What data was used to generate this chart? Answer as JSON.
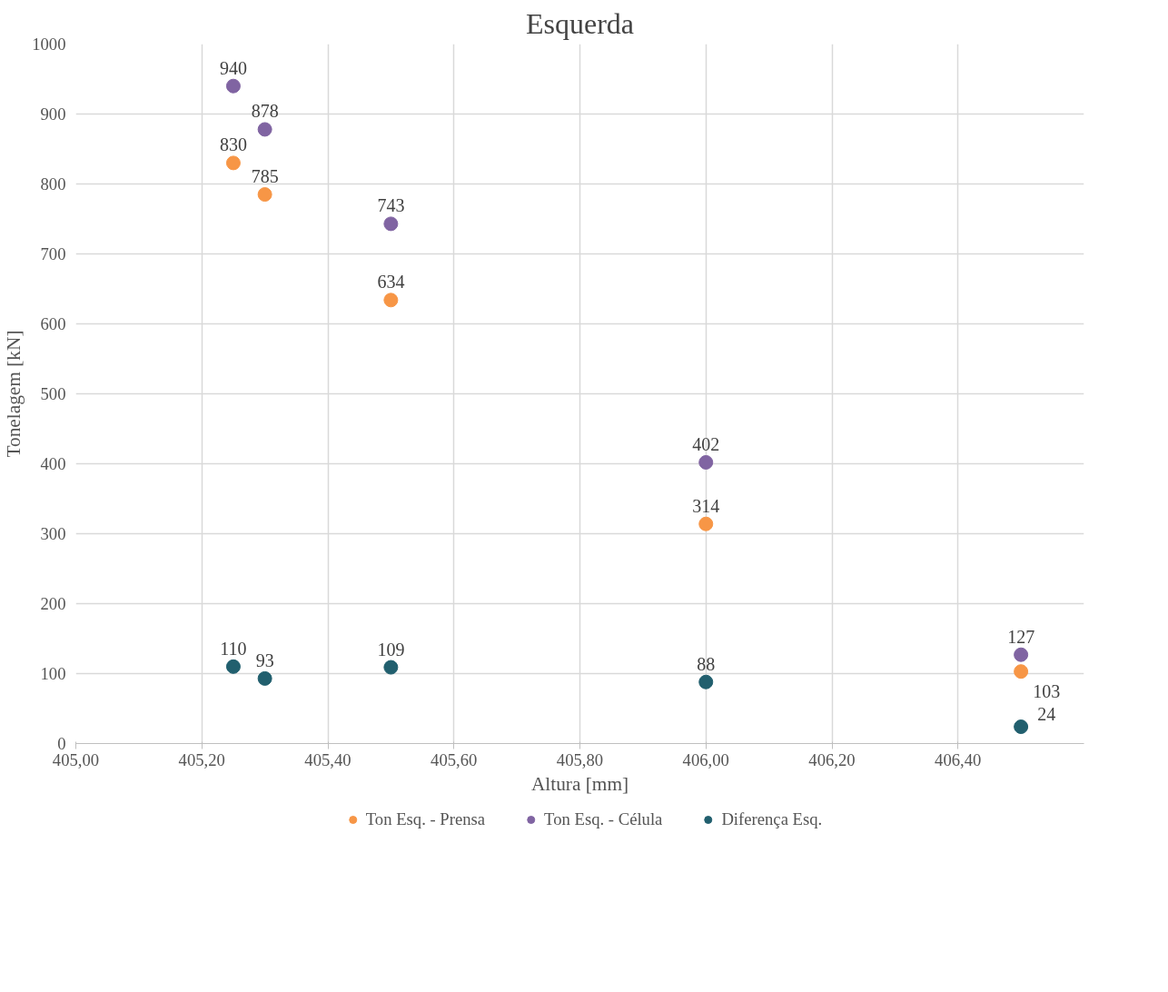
{
  "chart_data": {
    "type": "scatter",
    "title": "Esquerda",
    "xlabel": "Altura [mm]",
    "ylabel": "Tonelagem [kN]",
    "x": [
      405.25,
      405.3,
      405.5,
      406.0,
      406.5
    ],
    "series": [
      {
        "name": "Ton Esq. - Prensa",
        "color": "#f79646",
        "values": [
          830,
          785,
          634,
          314,
          103
        ]
      },
      {
        "name": "Ton Esq. - Célula",
        "color": "#8064a2",
        "values": [
          940,
          878,
          743,
          402,
          127
        ]
      },
      {
        "name": "Diferença Esq.",
        "color": "#215f6e",
        "values": [
          110,
          93,
          109,
          88,
          24
        ]
      }
    ],
    "xlim": [
      405.0,
      406.6
    ],
    "xticks": [
      {
        "value": 405.0,
        "label": "405,00"
      },
      {
        "value": 405.2,
        "label": "405,20"
      },
      {
        "value": 405.4,
        "label": "405,40"
      },
      {
        "value": 405.6,
        "label": "405,60"
      },
      {
        "value": 405.8,
        "label": "405,80"
      },
      {
        "value": 406.0,
        "label": "406,00"
      },
      {
        "value": 406.2,
        "label": "406,20"
      },
      {
        "value": 406.4,
        "label": "406,40"
      }
    ],
    "ylim": [
      0,
      1000
    ],
    "yticks": [
      0,
      100,
      200,
      300,
      400,
      500,
      600,
      700,
      800,
      900,
      1000
    ],
    "grid": true,
    "legend": "bottom",
    "marker": "circle",
    "data_labels": true
  }
}
